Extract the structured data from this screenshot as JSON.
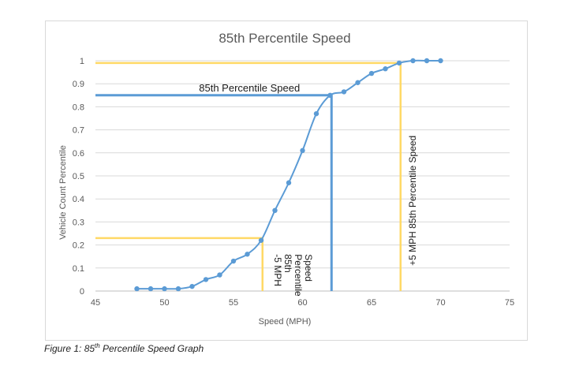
{
  "chart_data": {
    "type": "scatter",
    "title": "85th Percentile Speed",
    "xlabel": "Speed (MPH)",
    "ylabel": "Vehicle Count Percentile",
    "xlim": [
      45,
      75
    ],
    "ylim": [
      0,
      1
    ],
    "xticks": [
      "45",
      "50",
      "55",
      "60",
      "65",
      "70",
      "75"
    ],
    "yticks": [
      "0",
      "0.1",
      "0.2",
      "0.3",
      "0.4",
      "0.5",
      "0.6",
      "0.7",
      "0.8",
      "0.9",
      "1"
    ],
    "grid": "horizontal",
    "line_color": "#5b9bd5",
    "series": [
      {
        "x": [
          48,
          49,
          50,
          51,
          52,
          53,
          54,
          55,
          56,
          57,
          58,
          59,
          60,
          61,
          62,
          63,
          64,
          65,
          66,
          67,
          68,
          69,
          70
        ],
        "y": [
          0.01,
          0.01,
          0.01,
          0.01,
          0.02,
          0.05,
          0.07,
          0.13,
          0.16,
          0.22,
          0.35,
          0.47,
          0.61,
          0.77,
          0.85,
          0.865,
          0.905,
          0.945,
          0.965,
          0.99,
          1.0,
          1.0,
          1.0
        ]
      }
    ],
    "reference_lines": [
      {
        "label": "85th Percentile Speed",
        "x": 62.1,
        "y": 0.85,
        "color": "#5b9bd5"
      },
      {
        "label_lines": [
          "-5 MPH",
          "85th",
          "Percentile",
          "Speed"
        ],
        "x": 57.1,
        "y": 0.23,
        "color": "#ffd966"
      },
      {
        "label": "+5 MPH 85th Percentile Speed",
        "x": 67.1,
        "y": 0.99,
        "color": "#ffd966"
      }
    ]
  },
  "caption": {
    "prefix": "Figure 1: 85",
    "sup": "th",
    "suffix": " Percentile Speed Graph"
  }
}
